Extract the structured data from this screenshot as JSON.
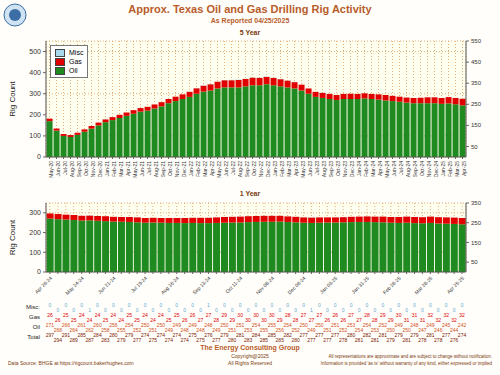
{
  "header": {
    "title": "Approx. Texas Oil and Gas Drilling Rig Activity",
    "subtitle": "As Reported 04/25/2025"
  },
  "footer": {
    "company": "The Energy Consulting Group",
    "copyright": "Copyright@2025",
    "rights": "All Rights Reserved",
    "source": "Data Source: BHGE at https://rigcount.bakerhughes.com",
    "disclaimer": [
      "All representations are approximate and are subject to change without notification.",
      "Information is provided 'as is' without warranty of any kind, either expressed or implied"
    ]
  },
  "chart_data": [
    {
      "type": "bar",
      "title": "5 Year",
      "y_label": "Rig Count",
      "stacked": true,
      "grid": true,
      "legend": "upper left",
      "ylim": [
        0,
        550
      ],
      "yticks": [
        0,
        100,
        200,
        300,
        400,
        500
      ],
      "y2lim": [
        0,
        550
      ],
      "y2ticks": [
        50,
        150,
        250,
        350,
        450,
        550
      ],
      "categories": [
        "May-20",
        "Jun-20",
        "Jul-20",
        "Aug-20",
        "Sep-20",
        "Oct-20",
        "Nov-20",
        "Dec-20",
        "Jan-21",
        "Feb-21",
        "Mar-21",
        "Apr-21",
        "May-21",
        "Jun-21",
        "Jul-21",
        "Aug-21",
        "Sep-21",
        "Oct-21",
        "Nov-21",
        "Dec-21",
        "Jan-22",
        "Feb-22",
        "Mar-22",
        "Apr-22",
        "May-22",
        "Jun-22",
        "Jul-22",
        "Aug-22",
        "Sep-22",
        "Oct-22",
        "Nov-22",
        "Dec-22",
        "Jan-23",
        "Feb-23",
        "Mar-23",
        "Apr-23",
        "May-23",
        "Jun-23",
        "Jul-23",
        "Aug-23",
        "Sep-23",
        "Oct-23",
        "Nov-23",
        "Dec-23",
        "Jan-24",
        "Feb-24",
        "Mar-24",
        "Apr-24",
        "May-24",
        "Jun-24",
        "Jul-24",
        "Aug-24",
        "Sep-24",
        "Oct-24",
        "Nov-24",
        "Dec-24",
        "Jan-25",
        "Feb-25",
        "Mar-25",
        "Apr-25"
      ],
      "series": [
        {
          "name": "Oil",
          "color": "#1f8a1f",
          "values": [
            170,
            125,
            100,
            95,
            105,
            120,
            135,
            150,
            165,
            175,
            185,
            195,
            205,
            215,
            220,
            230,
            240,
            255,
            265,
            275,
            285,
            300,
            310,
            315,
            325,
            330,
            330,
            330,
            335,
            340,
            340,
            345,
            340,
            335,
            330,
            325,
            315,
            300,
            285,
            280,
            275,
            270,
            275,
            275,
            275,
            278,
            275,
            272,
            268,
            265,
            262,
            258,
            255,
            255,
            255,
            255,
            252,
            254,
            250,
            245
          ]
        },
        {
          "name": "Gas",
          "color": "#e00000",
          "values": [
            12,
            10,
            9,
            9,
            10,
            11,
            12,
            13,
            13,
            14,
            15,
            16,
            17,
            17,
            18,
            19,
            20,
            20,
            21,
            22,
            24,
            26,
            28,
            30,
            32,
            34,
            34,
            35,
            35,
            36,
            35,
            35,
            35,
            34,
            32,
            30,
            28,
            25,
            24,
            24,
            24,
            24,
            24,
            25,
            24,
            24,
            24,
            25,
            26,
            25,
            24,
            24,
            25,
            26,
            28,
            28,
            28,
            30,
            30,
            31
          ]
        },
        {
          "name": "Misc",
          "color": "#a8d8ec",
          "values": [
            0,
            0,
            0,
            0,
            0,
            0,
            0,
            0,
            0,
            0,
            0,
            0,
            0,
            0,
            0,
            0,
            0,
            0,
            0,
            0,
            1,
            1,
            1,
            1,
            1,
            1,
            2,
            2,
            1,
            1,
            1,
            1,
            1,
            1,
            1,
            1,
            0,
            0,
            0,
            0,
            0,
            0,
            0,
            0,
            0,
            0,
            0,
            0,
            0,
            0,
            0,
            0,
            0,
            0,
            0,
            0,
            0,
            0,
            0,
            0
          ]
        }
      ]
    },
    {
      "type": "bar",
      "title": "1 Year",
      "y_label": "Rig Count",
      "stacked": true,
      "grid": true,
      "ylim": [
        0,
        350
      ],
      "yticks": [
        0,
        100,
        200,
        300
      ],
      "y2lim": [
        0,
        350
      ],
      "y2ticks": [
        50,
        150,
        250,
        350
      ],
      "categories": [
        "Apr 26-24",
        null,
        null,
        null,
        "May 24-24",
        null,
        null,
        null,
        "Jun 21-24",
        null,
        null,
        null,
        "Jul 19-24",
        null,
        null,
        null,
        "Aug 16-24",
        null,
        null,
        null,
        "Sep 13-24",
        null,
        null,
        null,
        "Oct 11-24",
        null,
        null,
        null,
        "Nov 08-24",
        null,
        null,
        null,
        "Dec 06-24",
        null,
        null,
        null,
        "Jan 03-25",
        null,
        null,
        null,
        "Jan 31-25",
        null,
        null,
        null,
        "Feb 28-25",
        null,
        null,
        null,
        "Mar 28-25",
        null,
        null,
        null,
        "Apr 25-25"
      ],
      "series": [
        {
          "name": "Oil",
          "color": "#1f8a1f",
          "values": [
            271,
            268,
            266,
            264,
            261,
            262,
            260,
            258,
            256,
            255,
            254,
            252,
            250,
            251,
            250,
            249,
            249,
            248,
            249,
            248,
            248,
            249,
            250,
            251,
            251,
            253,
            254,
            255,
            255,
            256,
            254,
            252,
            250,
            249,
            250,
            251,
            251,
            252,
            253,
            254,
            254,
            253,
            252,
            250,
            249,
            250,
            248,
            247,
            249,
            246,
            245,
            244,
            242
          ]
        },
        {
          "name": "Gas",
          "color": "#e00000",
          "values": [
            26,
            26,
            25,
            25,
            24,
            24,
            24,
            25,
            24,
            24,
            25,
            25,
            24,
            24,
            24,
            25,
            25,
            26,
            26,
            27,
            27,
            28,
            29,
            29,
            30,
            30,
            30,
            30,
            30,
            29,
            28,
            28,
            27,
            27,
            27,
            26,
            26,
            26,
            27,
            27,
            28,
            28,
            29,
            29,
            30,
            31,
            31,
            31,
            32,
            32,
            32,
            32,
            32
          ]
        },
        {
          "name": "Misc",
          "color": "#a8d8ec",
          "values": [
            0,
            0,
            0,
            0,
            0,
            1,
            0,
            0,
            0,
            0,
            0,
            0,
            0,
            0,
            0,
            0,
            0,
            0,
            0,
            0,
            1,
            0,
            0,
            0,
            0,
            0,
            0,
            0,
            0,
            0,
            0,
            0,
            0,
            1,
            0,
            0,
            0,
            0,
            0,
            0,
            0,
            0,
            0,
            0,
            0,
            0,
            0,
            0,
            0,
            0,
            0,
            0,
            0
          ]
        }
      ],
      "table": {
        "row_labels": [
          "Misc:",
          "Gas",
          "Oil",
          "Total"
        ],
        "totals": [
          297,
          294,
          291,
          289,
          285,
          287,
          284,
          283,
          280,
          279,
          279,
          277,
          274,
          275,
          274,
          274,
          274,
          274,
          275,
          275,
          276,
          277,
          279,
          280,
          281,
          283,
          284,
          285,
          285,
          285,
          282,
          280,
          277,
          277,
          277,
          277,
          277,
          278,
          280,
          281,
          282,
          281,
          281,
          279,
          279,
          281,
          279,
          278,
          281,
          278,
          277,
          276,
          274
        ]
      }
    }
  ]
}
